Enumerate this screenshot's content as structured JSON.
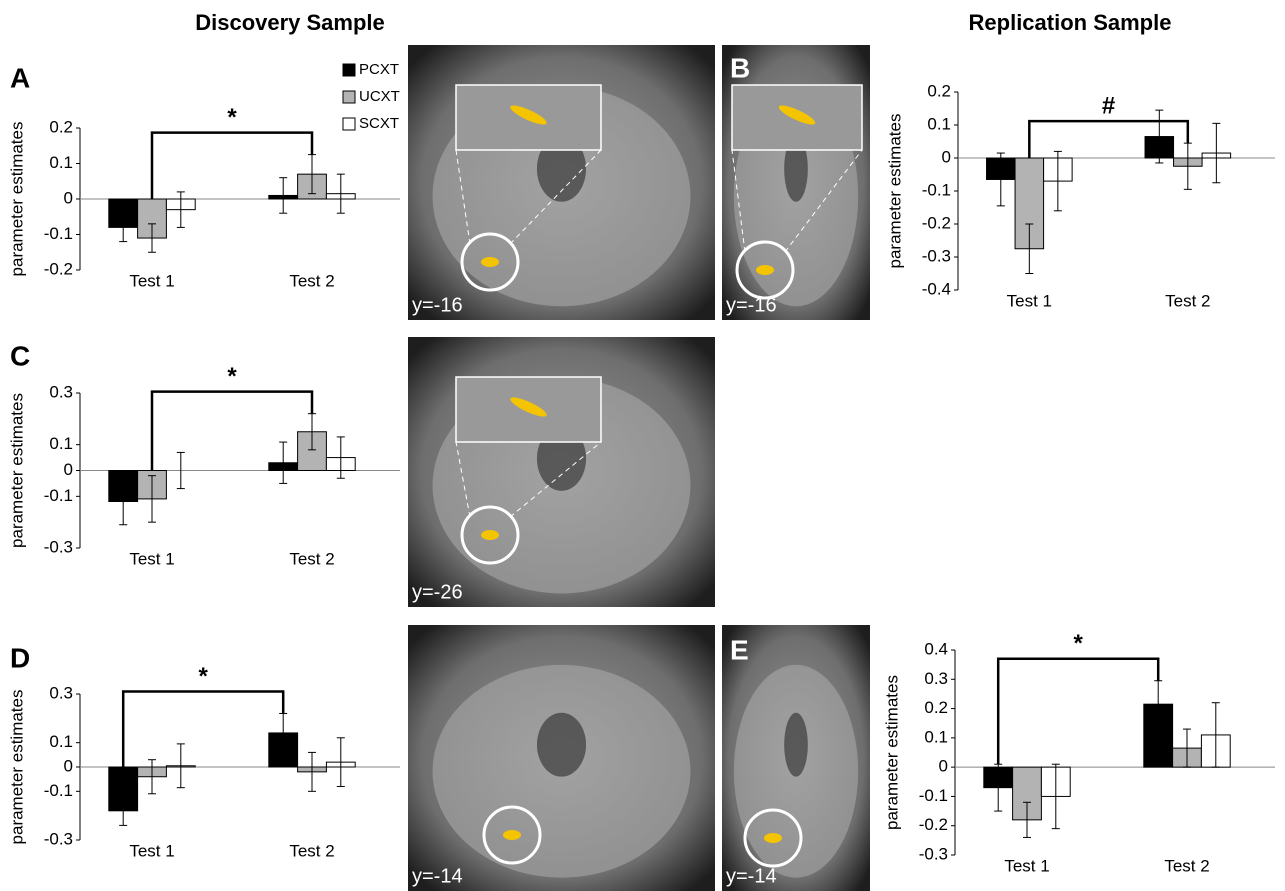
{
  "headings": [
    "Discovery Sample",
    "Replication Sample"
  ],
  "panels": [
    "A",
    "B",
    "C",
    "D",
    "E"
  ],
  "images": [
    {
      "label": "y=-16"
    },
    {
      "label": "y=-16"
    },
    {
      "label": "y=-26"
    },
    {
      "label": "y=-14"
    },
    {
      "label": "y=-14"
    }
  ],
  "chart_data": [
    {
      "type": "bar",
      "ylabel": "parameter estimates",
      "categories": [
        "Test 1",
        "Test 2"
      ],
      "annotation": "*",
      "series": [
        {
          "name": "PCXT",
          "color": "#000000",
          "values": [
            -0.08,
            0.01
          ],
          "errors": [
            0.04,
            0.05
          ]
        },
        {
          "name": "UCXT",
          "color": "#b3b3b3",
          "values": [
            -0.11,
            0.07
          ],
          "errors": [
            0.04,
            0.055
          ]
        },
        {
          "name": "SCXT",
          "color": "#ffffff",
          "values": [
            -0.03,
            0.015
          ],
          "errors": [
            0.05,
            0.055
          ]
        }
      ],
      "ylim": [
        -0.2,
        0.2
      ],
      "yticks": [
        -0.2,
        -0.1,
        0,
        0.1,
        0.2
      ]
    },
    {
      "type": "bar",
      "ylabel": "parameter estimates",
      "categories": [
        "Test 1",
        "Test 2"
      ],
      "annotation": "#",
      "series": [
        {
          "color": "#000000",
          "values": [
            -0.065,
            0.065
          ],
          "errors": [
            0.08,
            0.08
          ]
        },
        {
          "color": "#b3b3b3",
          "values": [
            -0.275,
            -0.025
          ],
          "errors": [
            0.075,
            0.07
          ]
        },
        {
          "color": "#ffffff",
          "values": [
            -0.07,
            0.015
          ],
          "errors": [
            0.09,
            0.09
          ]
        }
      ],
      "ylim": [
        -0.4,
        0.2
      ],
      "yticks": [
        -0.4,
        -0.3,
        -0.2,
        -0.1,
        0,
        0.1,
        0.2
      ]
    },
    {
      "type": "bar",
      "ylabel": "parameter estimates",
      "categories": [
        "Test 1",
        "Test 2"
      ],
      "annotation": "*",
      "series": [
        {
          "color": "#000000",
          "values": [
            -0.12,
            0.03
          ],
          "errors": [
            0.09,
            0.08
          ]
        },
        {
          "color": "#b3b3b3",
          "values": [
            -0.11,
            0.15
          ],
          "errors": [
            0.09,
            0.07
          ]
        },
        {
          "color": "#ffffff",
          "values": [
            0.0,
            0.05
          ],
          "errors": [
            0.07,
            0.08
          ]
        }
      ],
      "ylim": [
        -0.3,
        0.3
      ],
      "yticks": [
        -0.3,
        -0.1,
        0,
        0.1,
        0.3
      ]
    },
    {
      "type": "bar",
      "ylabel": "parameter estimates",
      "categories": [
        "Test 1",
        "Test 2"
      ],
      "annotation": "*",
      "series": [
        {
          "color": "#000000",
          "values": [
            -0.18,
            0.14
          ],
          "errors": [
            0.06,
            0.08
          ]
        },
        {
          "color": "#b3b3b3",
          "values": [
            -0.04,
            -0.02
          ],
          "errors": [
            0.07,
            0.08
          ]
        },
        {
          "color": "#ffffff",
          "values": [
            0.005,
            0.02
          ],
          "errors": [
            0.09,
            0.1
          ]
        }
      ],
      "ylim": [
        -0.3,
        0.3
      ],
      "yticks": [
        -0.3,
        -0.1,
        0,
        0.1,
        0.3
      ]
    },
    {
      "type": "bar",
      "ylabel": "parameter estimates",
      "categories": [
        "Test 1",
        "Test 2"
      ],
      "annotation": "*",
      "series": [
        {
          "color": "#000000",
          "values": [
            -0.07,
            0.215
          ],
          "errors": [
            0.08,
            0.08
          ]
        },
        {
          "color": "#b3b3b3",
          "values": [
            -0.18,
            0.065
          ],
          "errors": [
            0.06,
            0.065
          ]
        },
        {
          "color": "#ffffff",
          "values": [
            -0.1,
            0.11
          ],
          "errors": [
            0.11,
            0.11
          ]
        }
      ],
      "ylim": [
        -0.3,
        0.4
      ],
      "yticks": [
        -0.3,
        -0.2,
        -0.1,
        0,
        0.1,
        0.2,
        0.3,
        0.4
      ]
    }
  ]
}
